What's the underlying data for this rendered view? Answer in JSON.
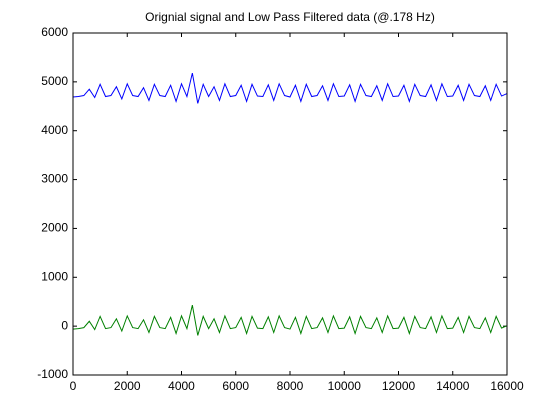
{
  "chart_data": {
    "type": "line",
    "title": "Orignial signal and Low Pass Filtered data (@.178 Hz)",
    "x": [
      0,
      200,
      400,
      600,
      800,
      1000,
      1200,
      1400,
      1600,
      1800,
      2000,
      2200,
      2400,
      2600,
      2800,
      3000,
      3200,
      3400,
      3600,
      3800,
      4000,
      4200,
      4400,
      4600,
      4800,
      5000,
      5200,
      5400,
      5600,
      5800,
      6000,
      6200,
      6400,
      6600,
      6800,
      7000,
      7200,
      7400,
      7600,
      7800,
      8000,
      8200,
      8400,
      8600,
      8800,
      9000,
      9200,
      9400,
      9600,
      9800,
      10000,
      10200,
      10400,
      10600,
      10800,
      11000,
      11200,
      11400,
      11600,
      11800,
      12000,
      12200,
      12400,
      12600,
      12800,
      13000,
      13200,
      13400,
      13600,
      13800,
      14000,
      14200,
      14400,
      14600,
      14800,
      15000,
      15200,
      15400,
      15600,
      15800,
      16000
    ],
    "series": [
      {
        "color": "#0000ff",
        "values": [
          4690,
          4700,
          4720,
          4850,
          4680,
          4950,
          4700,
          4720,
          4900,
          4650,
          4960,
          4720,
          4700,
          4880,
          4620,
          4950,
          4720,
          4700,
          4930,
          4600,
          4960,
          4700,
          5180,
          4560,
          4950,
          4700,
          4900,
          4620,
          4960,
          4700,
          4720,
          4930,
          4600,
          4950,
          4710,
          4700,
          4940,
          4620,
          4960,
          4720,
          4690,
          4930,
          4600,
          4950,
          4700,
          4720,
          4920,
          4620,
          4960,
          4700,
          4710,
          4940,
          4600,
          4950,
          4720,
          4700,
          4920,
          4620,
          4960,
          4700,
          4710,
          4930,
          4600,
          4950,
          4720,
          4700,
          4940,
          4620,
          4960,
          4700,
          4710,
          4930,
          4620,
          4950,
          4720,
          4700,
          4920,
          4620,
          4950,
          4710,
          4760
        ]
      },
      {
        "color": "#008000",
        "values": [
          -60,
          -50,
          -30,
          100,
          -70,
          200,
          -50,
          -30,
          150,
          -100,
          210,
          -30,
          -50,
          130,
          -130,
          200,
          -30,
          -50,
          180,
          -150,
          210,
          -50,
          430,
          -190,
          200,
          -50,
          150,
          -130,
          210,
          -50,
          -30,
          180,
          -150,
          200,
          -40,
          -50,
          190,
          -130,
          210,
          -30,
          -60,
          180,
          -150,
          200,
          -50,
          -30,
          170,
          -130,
          210,
          -50,
          -40,
          190,
          -150,
          200,
          -30,
          -50,
          170,
          -130,
          210,
          -50,
          -40,
          180,
          -150,
          200,
          -30,
          -50,
          190,
          -130,
          210,
          -50,
          -40,
          180,
          -130,
          200,
          -30,
          -50,
          170,
          -130,
          200,
          -40,
          10
        ]
      }
    ],
    "xlim": [
      0,
      16000
    ],
    "xticks": [
      0,
      2000,
      4000,
      6000,
      8000,
      10000,
      12000,
      14000,
      16000
    ],
    "ylim": [
      -1000,
      6000
    ],
    "yticks": [
      -1000,
      0,
      1000,
      2000,
      3000,
      4000,
      5000,
      6000
    ],
    "grid": false
  }
}
